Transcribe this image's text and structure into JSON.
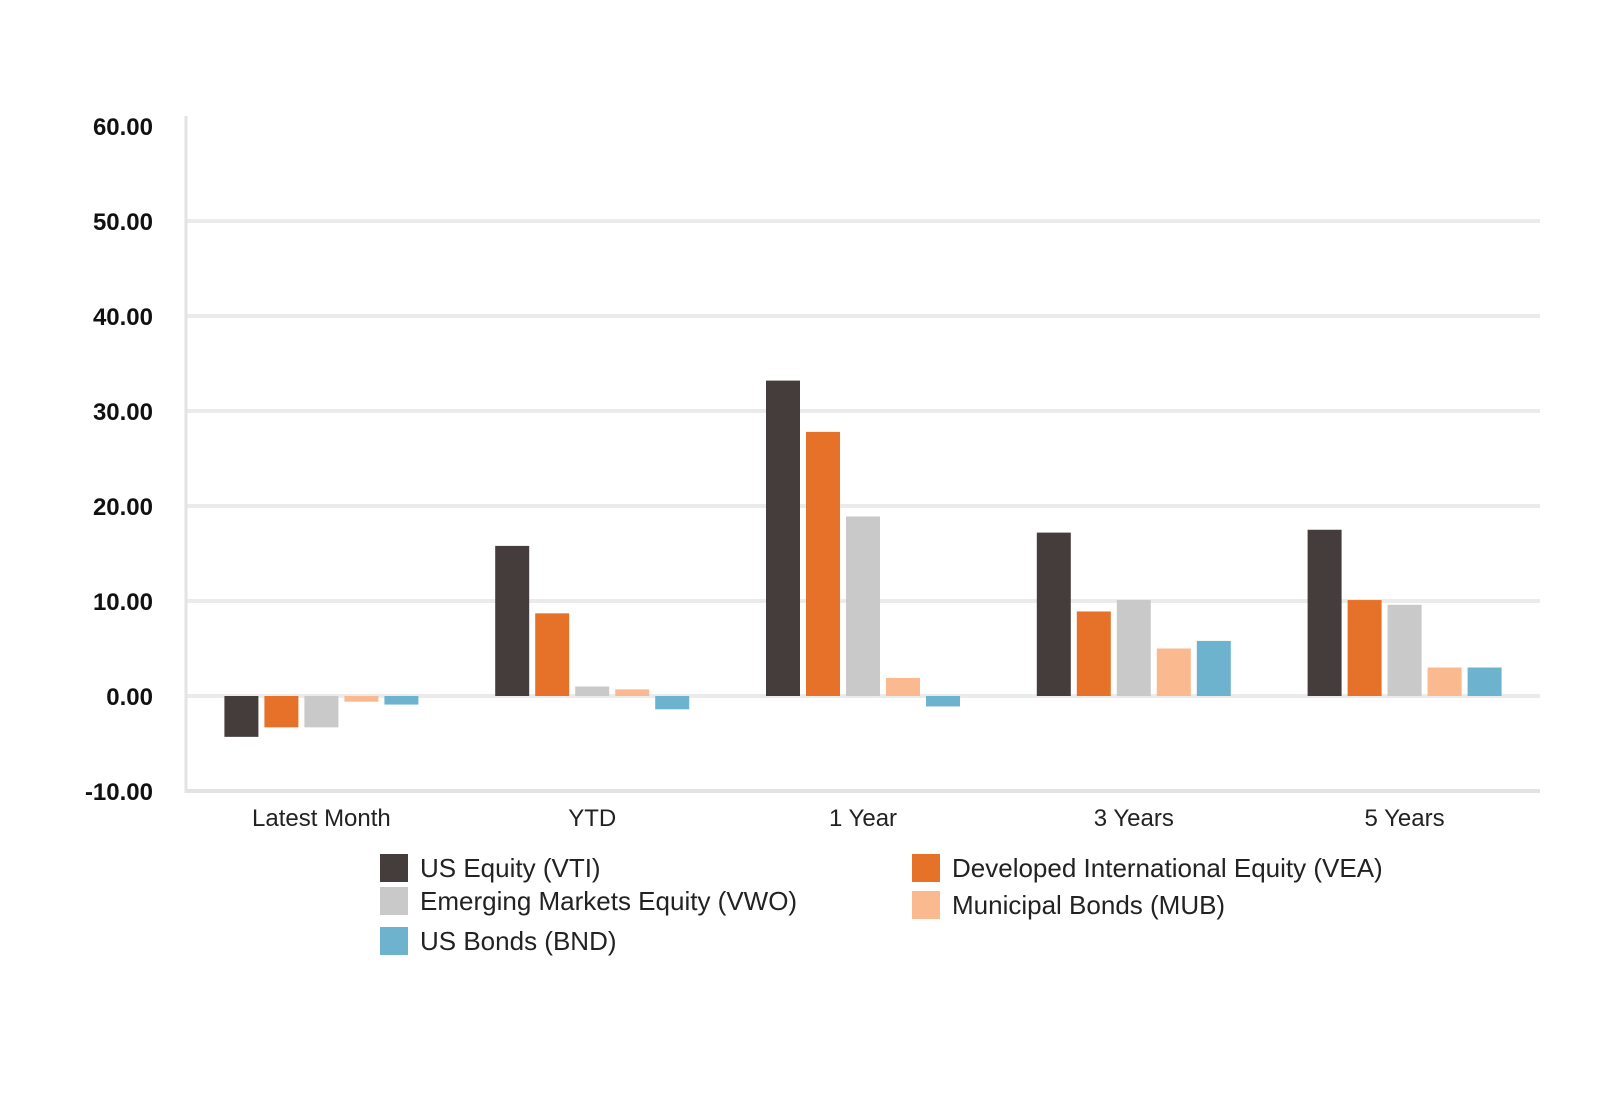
{
  "chart_data": {
    "type": "bar",
    "categories": [
      "Latest Month",
      "YTD",
      "1 Year",
      "3 Years",
      "5 Years"
    ],
    "series": [
      {
        "name": "US Equity (VTI)",
        "color": "#453d3c",
        "values": [
          -4.3,
          15.8,
          33.2,
          17.2,
          17.5
        ]
      },
      {
        "name": "Developed International Equity (VEA)",
        "color": "#e6722a",
        "values": [
          -3.3,
          8.7,
          27.8,
          8.9,
          10.1
        ]
      },
      {
        "name": "Emerging Markets Equity (VWO)",
        "color": "#c9c9c9",
        "values": [
          -3.3,
          1.0,
          18.9,
          10.1,
          9.6
        ]
      },
      {
        "name": "Municipal Bonds (MUB)",
        "color": "#fbb98f",
        "values": [
          -0.6,
          0.7,
          1.9,
          5.0,
          3.0
        ]
      },
      {
        "name": "US Bonds (BND)",
        "color": "#6db3ce",
        "values": [
          -0.9,
          -1.4,
          -1.1,
          5.8,
          3.0
        ]
      }
    ],
    "yticks": [
      "60.00",
      "50.00",
      "40.00",
      "30.00",
      "20.00",
      "10.00",
      "0.00",
      "-10.00"
    ],
    "ylim": [
      -10,
      60
    ],
    "grid": true,
    "legend_position": "bottom"
  }
}
